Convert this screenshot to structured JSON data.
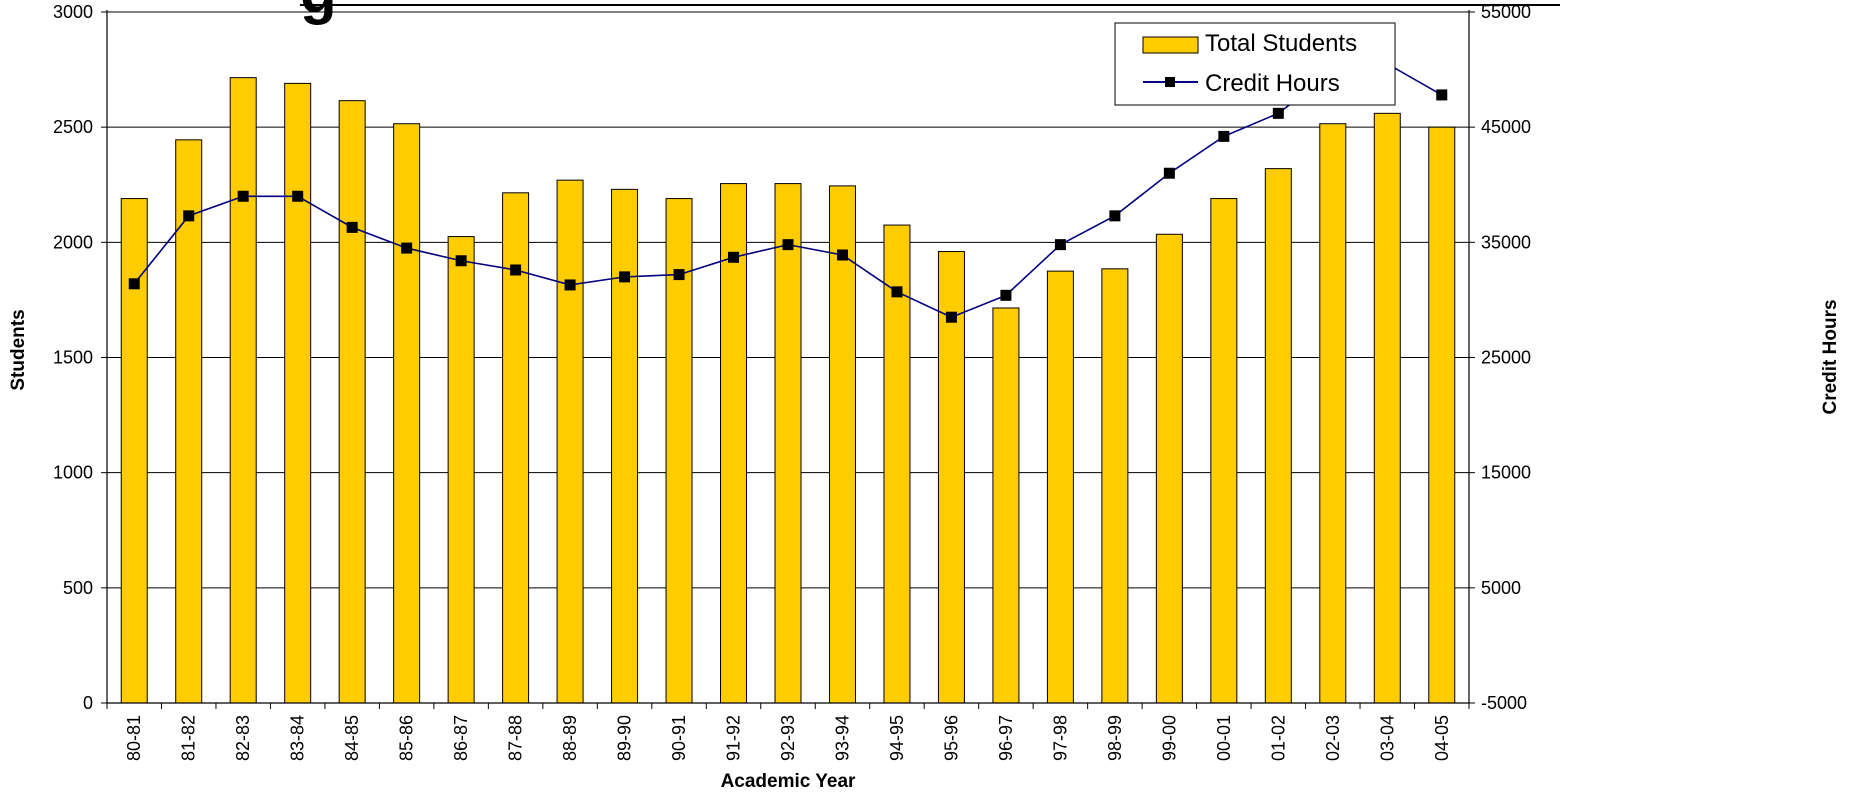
{
  "chart_data": {
    "type": "bar",
    "title_fragment": "g",
    "xlabel": "Academic Year",
    "ylabel": "Students",
    "y2label": "Credit Hours",
    "ylim": [
      0,
      3000
    ],
    "y2lim": [
      -5000,
      55000
    ],
    "y_ticks": [
      "0",
      "500",
      "1000",
      "1500",
      "2000",
      "2500",
      "3000"
    ],
    "y2_ticks": [
      "-5000",
      "5000",
      "15000",
      "25000",
      "35000",
      "45000",
      "55000"
    ],
    "grid": true,
    "legend_position": "top-right",
    "categories": [
      "80-81",
      "81-82",
      "82-83",
      "83-84",
      "84-85",
      "85-86",
      "86-87",
      "87-88",
      "88-89",
      "89-90",
      "90-91",
      "91-92",
      "92-93",
      "93-94",
      "94-95",
      "95-96",
      "96-97",
      "97-98",
      "98-99",
      "99-00",
      "00-01",
      "01-02",
      "02-03",
      "03-04",
      "04-05"
    ],
    "series": [
      {
        "name": "Total Students",
        "type": "bar",
        "axis": "left",
        "color": "#FFCC00",
        "values": [
          2190,
          2445,
          2715,
          2690,
          2615,
          2515,
          2025,
          2215,
          2270,
          2230,
          2190,
          2255,
          2255,
          2245,
          2075,
          1960,
          1715,
          1875,
          1885,
          2035,
          2190,
          2320,
          2515,
          2560,
          2500
        ]
      },
      {
        "name": "Credit Hours",
        "type": "line",
        "axis": "right",
        "color": "#000080",
        "marker_color": "#000000",
        "values": [
          31400,
          37300,
          39000,
          39000,
          36300,
          34500,
          33400,
          32600,
          31300,
          32000,
          32200,
          33700,
          34800,
          33900,
          30700,
          28500,
          30400,
          34800,
          37300,
          41000,
          44200,
          46200,
          49800,
          50500,
          47800
        ]
      }
    ]
  }
}
